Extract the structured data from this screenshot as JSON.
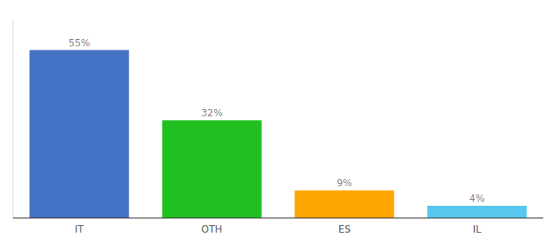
{
  "chart_data": {
    "type": "bar",
    "categories": [
      "IT",
      "OTH",
      "ES",
      "IL"
    ],
    "values": [
      55,
      32,
      9,
      4
    ],
    "value_labels": [
      "55%",
      "32%",
      "9%",
      "4%"
    ],
    "colors": [
      "#4472C4",
      "#21C021",
      "#FFA500",
      "#56C8F0"
    ],
    "ylim": [
      0,
      65
    ],
    "data_labels": true,
    "tick_labels": "x"
  }
}
